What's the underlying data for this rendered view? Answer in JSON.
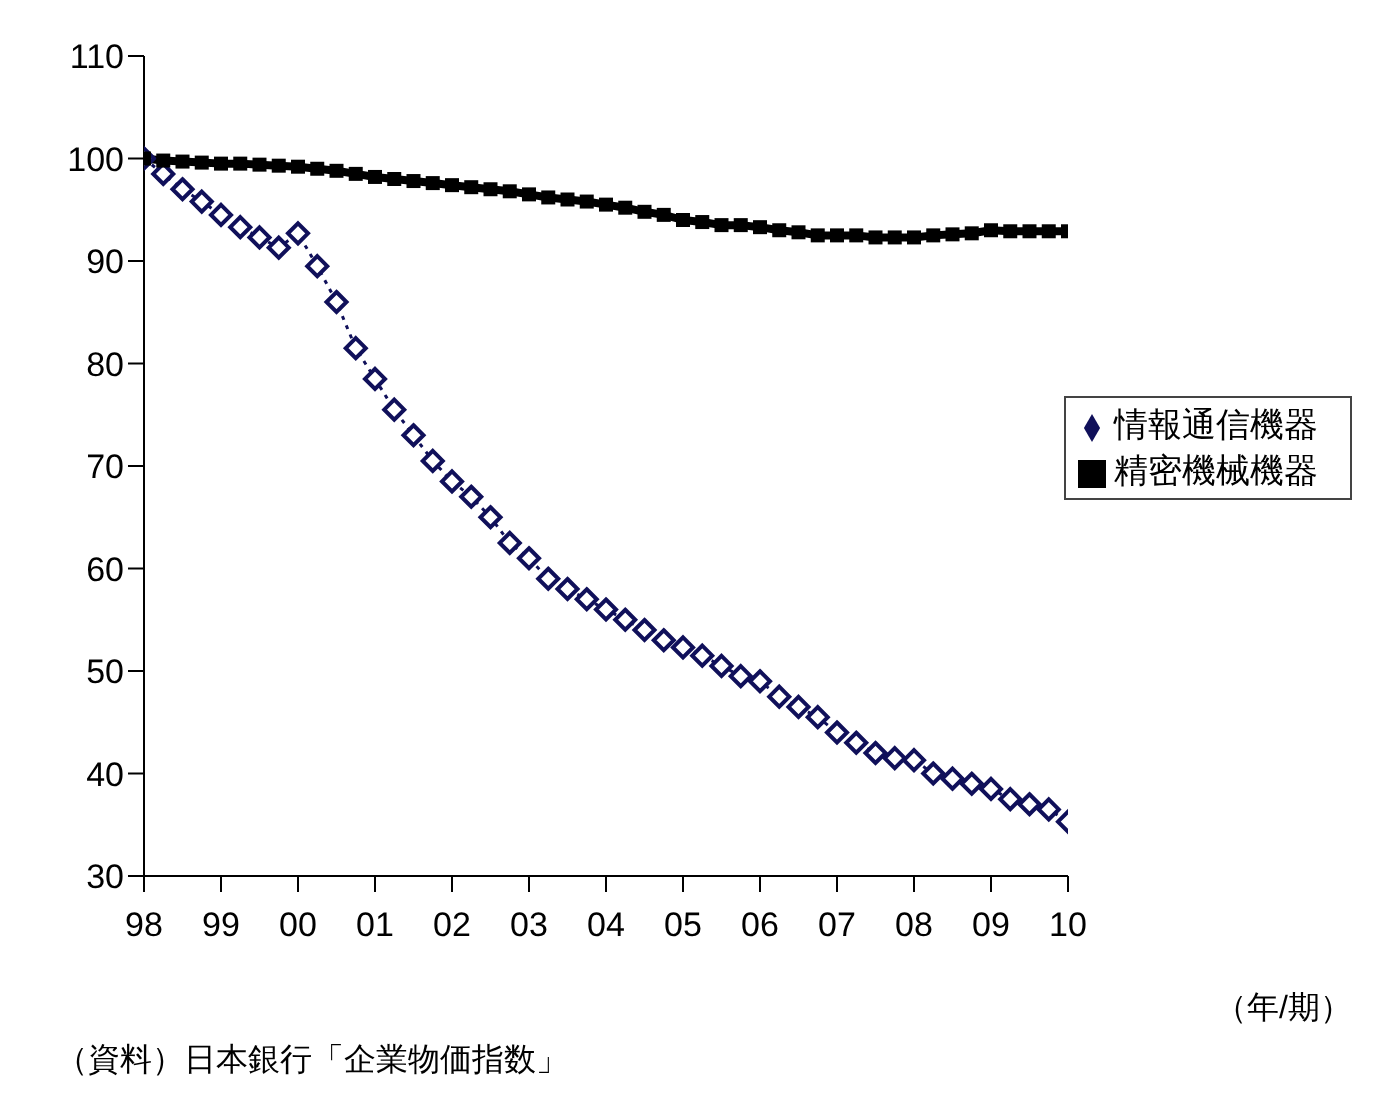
{
  "chart_data": {
    "type": "line",
    "xlabel": "（年/期）",
    "annotations": [
      "（資料）日本銀行「企業物価指数」"
    ],
    "categories": [
      "98",
      null,
      null,
      null,
      "99",
      null,
      null,
      null,
      "00",
      null,
      null,
      null,
      "01",
      null,
      null,
      null,
      "02",
      null,
      null,
      null,
      "03",
      null,
      null,
      null,
      "04",
      null,
      null,
      null,
      "05",
      null,
      null,
      null,
      "06",
      null,
      null,
      null,
      "07",
      null,
      null,
      null,
      "08",
      null,
      null,
      null,
      "09",
      null,
      null,
      null,
      "10"
    ],
    "series": [
      {
        "name": "情報通信機器",
        "color": "#10105a",
        "marker": "diamond",
        "line_style": "dotted",
        "values": [
          100,
          98.5,
          97,
          95.8,
          94.5,
          93.3,
          92.3,
          91.3,
          92.7,
          89.5,
          86,
          81.5,
          78.5,
          75.5,
          73,
          70.5,
          68.5,
          67,
          65,
          62.5,
          61,
          59,
          58,
          57,
          56,
          55,
          54,
          53,
          52.3,
          51.5,
          50.5,
          49.5,
          49,
          47.5,
          46.5,
          45.5,
          44,
          43,
          42,
          41.5,
          41.3,
          40,
          39.5,
          39,
          38.5,
          37.5,
          37,
          36.5,
          35.3
        ]
      },
      {
        "name": "精密機械機器",
        "color": "#000000",
        "marker": "square",
        "line_style": "solid",
        "values": [
          100,
          99.8,
          99.7,
          99.6,
          99.5,
          99.5,
          99.4,
          99.3,
          99.2,
          99,
          98.8,
          98.5,
          98.2,
          98,
          97.8,
          97.6,
          97.4,
          97.2,
          97,
          96.8,
          96.5,
          96.2,
          96,
          95.8,
          95.5,
          95.2,
          94.8,
          94.5,
          94,
          93.8,
          93.5,
          93.5,
          93.3,
          93,
          92.8,
          92.5,
          92.5,
          92.5,
          92.3,
          92.3,
          92.3,
          92.5,
          92.6,
          92.7,
          93,
          92.9,
          92.9,
          92.9,
          92.9
        ]
      }
    ],
    "ylim": [
      30,
      110
    ],
    "yticks": [
      30,
      40,
      50,
      60,
      70,
      80,
      90,
      100,
      110
    ],
    "grid": false,
    "legend": "right"
  }
}
